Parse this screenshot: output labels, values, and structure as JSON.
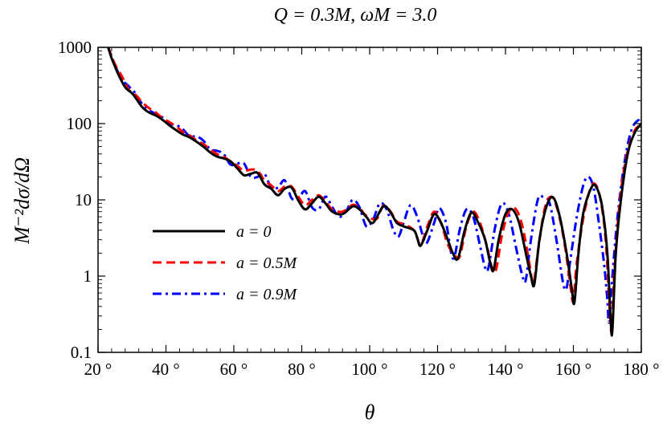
{
  "chart_data": {
    "type": "line",
    "title": "Q = 0.3M, ωM = 3.0",
    "xlabel": "θ",
    "ylabel": "M⁻²dσ/dΩ",
    "xlim": [
      20,
      180
    ],
    "ylim": [
      0.1,
      1000
    ],
    "y_scale": "log",
    "x_ticks": [
      20,
      40,
      60,
      80,
      100,
      120,
      140,
      160,
      180
    ],
    "x_tick_labels": [
      "20 °",
      "40 °",
      "60 °",
      "80 °",
      "100 °",
      "120 °",
      "140 °",
      "160 °",
      "180 °"
    ],
    "y_ticks": [
      0.1,
      1,
      10,
      100,
      1000
    ],
    "y_tick_labels": [
      "0.1",
      "1",
      "10",
      "100",
      "1000"
    ],
    "grid": false,
    "legend_position": "left",
    "series": [
      {
        "name": "a = 0",
        "color": "#000000",
        "dash": "solid",
        "points": [
          [
            23,
            1000
          ],
          [
            24,
            720
          ],
          [
            25,
            560
          ],
          [
            26,
            440
          ],
          [
            28,
            300
          ],
          [
            30,
            250
          ],
          [
            31,
            220
          ],
          [
            33,
            165
          ],
          [
            35,
            140
          ],
          [
            37,
            128
          ],
          [
            39,
            112
          ],
          [
            41,
            95
          ],
          [
            43,
            82
          ],
          [
            45,
            72
          ],
          [
            47,
            66
          ],
          [
            49,
            58
          ],
          [
            51,
            50
          ],
          [
            53,
            42
          ],
          [
            55,
            37
          ],
          [
            57,
            35
          ],
          [
            59,
            32
          ],
          [
            61,
            26
          ],
          [
            63,
            21
          ],
          [
            65,
            22
          ],
          [
            67,
            22.5
          ],
          [
            69,
            16
          ],
          [
            71,
            14
          ],
          [
            73,
            11.5
          ],
          [
            75,
            14
          ],
          [
            77,
            14.5
          ],
          [
            79,
            9.8
          ],
          [
            81,
            7.5
          ],
          [
            83,
            9
          ],
          [
            85,
            11
          ],
          [
            87,
            9
          ],
          [
            89,
            7
          ],
          [
            92,
            6.5
          ],
          [
            95,
            8.2
          ],
          [
            97,
            7.5
          ],
          [
            99,
            6
          ],
          [
            101,
            5
          ],
          [
            104,
            8.2
          ],
          [
            106,
            7
          ],
          [
            108,
            5
          ],
          [
            110,
            4.5
          ],
          [
            113,
            4
          ],
          [
            114,
            3.2
          ],
          [
            115,
            2.5
          ],
          [
            117,
            4
          ],
          [
            119,
            6.5
          ],
          [
            121,
            5
          ],
          [
            123,
            3
          ],
          [
            124.5,
            2
          ],
          [
            126,
            1.7
          ],
          [
            128,
            4
          ],
          [
            130,
            6.8
          ],
          [
            132,
            5
          ],
          [
            134,
            3
          ],
          [
            135.5,
            1.5
          ],
          [
            136.5,
            1.2
          ],
          [
            138,
            3
          ],
          [
            140,
            6.5
          ],
          [
            142,
            7.5
          ],
          [
            144,
            5
          ],
          [
            146,
            2
          ],
          [
            147.5,
            1
          ],
          [
            148.5,
            0.78
          ],
          [
            150,
            3
          ],
          [
            152,
            8
          ],
          [
            154,
            10.8
          ],
          [
            156,
            6
          ],
          [
            158,
            2
          ],
          [
            159.5,
            0.7
          ],
          [
            160.3,
            0.45
          ],
          [
            161.5,
            2
          ],
          [
            163,
            7
          ],
          [
            165.5,
            15
          ],
          [
            167,
            14
          ],
          [
            168.5,
            8
          ],
          [
            170,
            2
          ],
          [
            171,
            0.25
          ],
          [
            171.5,
            0.2
          ],
          [
            172.5,
            2
          ],
          [
            174,
            10
          ],
          [
            176,
            40
          ],
          [
            178,
            75
          ],
          [
            180,
            100
          ]
        ]
      },
      {
        "name": "a = 0.5M",
        "color": "#ff0000",
        "dash": "dashed",
        "points": [
          [
            23,
            1000
          ],
          [
            25,
            600
          ],
          [
            27,
            420
          ],
          [
            29,
            280
          ],
          [
            31,
            240
          ],
          [
            33,
            190
          ],
          [
            35,
            160
          ],
          [
            37,
            140
          ],
          [
            39,
            118
          ],
          [
            41,
            105
          ],
          [
            43,
            92
          ],
          [
            45,
            78
          ],
          [
            47,
            70
          ],
          [
            49,
            60
          ],
          [
            51,
            54
          ],
          [
            53,
            46
          ],
          [
            55,
            40
          ],
          [
            57,
            37
          ],
          [
            59,
            32
          ],
          [
            61,
            28
          ],
          [
            63,
            24
          ],
          [
            65,
            25
          ],
          [
            67,
            24
          ],
          [
            69,
            18
          ],
          [
            71,
            15.5
          ],
          [
            73,
            13
          ],
          [
            75,
            15
          ],
          [
            77,
            15
          ],
          [
            79,
            11
          ],
          [
            81,
            8.5
          ],
          [
            83,
            10
          ],
          [
            85,
            11.5
          ],
          [
            87,
            9.5
          ],
          [
            89,
            7.5
          ],
          [
            92,
            7
          ],
          [
            95,
            8.6
          ],
          [
            97,
            7.8
          ],
          [
            99,
            6.2
          ],
          [
            102,
            5.6
          ],
          [
            104,
            8.4
          ],
          [
            106,
            7.2
          ],
          [
            108,
            5.2
          ],
          [
            110,
            4.8
          ],
          [
            113,
            4
          ],
          [
            115,
            2.6
          ],
          [
            117,
            4.5
          ],
          [
            119,
            7
          ],
          [
            121,
            5
          ],
          [
            123,
            2.6
          ],
          [
            125,
            1.9
          ],
          [
            126.5,
            1.8
          ],
          [
            128.5,
            4.5
          ],
          [
            130.5,
            7
          ],
          [
            132.5,
            5
          ],
          [
            134.5,
            2.5
          ],
          [
            136,
            1.3
          ],
          [
            137.2,
            1.2
          ],
          [
            139,
            3.5
          ],
          [
            141,
            7
          ],
          [
            143,
            7.6
          ],
          [
            145,
            4.5
          ],
          [
            147,
            1.5
          ],
          [
            148.2,
            0.8
          ],
          [
            149.5,
            2
          ],
          [
            151.5,
            7.5
          ],
          [
            153.5,
            11
          ],
          [
            155.5,
            7
          ],
          [
            157.5,
            2.5
          ],
          [
            159.2,
            0.7
          ],
          [
            160,
            0.48
          ],
          [
            161,
            1.5
          ],
          [
            163,
            6
          ],
          [
            165,
            14
          ],
          [
            166.5,
            16
          ],
          [
            168,
            10
          ],
          [
            169.5,
            3
          ],
          [
            170.8,
            0.3
          ],
          [
            171.3,
            0.2
          ],
          [
            172,
            1
          ],
          [
            173.5,
            8
          ],
          [
            175.5,
            35
          ],
          [
            178,
            80
          ],
          [
            180,
            95
          ]
        ]
      },
      {
        "name": "a = 0.9M",
        "color": "#0000ff",
        "dash": "dashdot",
        "points": [
          [
            23,
            1000
          ],
          [
            25,
            580
          ],
          [
            27,
            380
          ],
          [
            29,
            310
          ],
          [
            31,
            250
          ],
          [
            33,
            180
          ],
          [
            35,
            150
          ],
          [
            37,
            135
          ],
          [
            39,
            120
          ],
          [
            41,
            100
          ],
          [
            43,
            96
          ],
          [
            45,
            84
          ],
          [
            47,
            68
          ],
          [
            49,
            68
          ],
          [
            51,
            60
          ],
          [
            53,
            46
          ],
          [
            55,
            44
          ],
          [
            57,
            40
          ],
          [
            59,
            29
          ],
          [
            61,
            30
          ],
          [
            63,
            30
          ],
          [
            65,
            20
          ],
          [
            67,
            20
          ],
          [
            69,
            22
          ],
          [
            71,
            14.5
          ],
          [
            73,
            14.5
          ],
          [
            75,
            18
          ],
          [
            77,
            10.5
          ],
          [
            79,
            10.5
          ],
          [
            81,
            13
          ],
          [
            83,
            8
          ],
          [
            85,
            7.5
          ],
          [
            87,
            11
          ],
          [
            89,
            8
          ],
          [
            91,
            6
          ],
          [
            93,
            7
          ],
          [
            95,
            10
          ],
          [
            97,
            8
          ],
          [
            99,
            4.5
          ],
          [
            101,
            5.5
          ],
          [
            103,
            9
          ],
          [
            105,
            7.5
          ],
          [
            107,
            4
          ],
          [
            108.5,
            3.3
          ],
          [
            110,
            5
          ],
          [
            112,
            8.5
          ],
          [
            114,
            6
          ],
          [
            116,
            3
          ],
          [
            117,
            2.8
          ],
          [
            119,
            5
          ],
          [
            120.5,
            7.8
          ],
          [
            122.5,
            5
          ],
          [
            124,
            2
          ],
          [
            125,
            1.8
          ],
          [
            126.5,
            4
          ],
          [
            128.5,
            7.5
          ],
          [
            130.5,
            6
          ],
          [
            132.5,
            2.5
          ],
          [
            134,
            1.3
          ],
          [
            135,
            1.3
          ],
          [
            137,
            4.5
          ],
          [
            139,
            9
          ],
          [
            141,
            6.5
          ],
          [
            143,
            2.5
          ],
          [
            145,
            1
          ],
          [
            146,
            0.9
          ],
          [
            147.5,
            3
          ],
          [
            149.5,
            10
          ],
          [
            151,
            11
          ],
          [
            153,
            9
          ],
          [
            155,
            3
          ],
          [
            157,
            0.8
          ],
          [
            158,
            0.7
          ],
          [
            159,
            1.5
          ],
          [
            161,
            6
          ],
          [
            163,
            16
          ],
          [
            164.5,
            20
          ],
          [
            166,
            14
          ],
          [
            167.5,
            5
          ],
          [
            169,
            1.5
          ],
          [
            170,
            0.5
          ],
          [
            170.5,
            0.25
          ],
          [
            171.5,
            1
          ],
          [
            173,
            6
          ],
          [
            175,
            30
          ],
          [
            177,
            80
          ],
          [
            179,
            110
          ],
          [
            180,
            100
          ]
        ]
      }
    ]
  }
}
